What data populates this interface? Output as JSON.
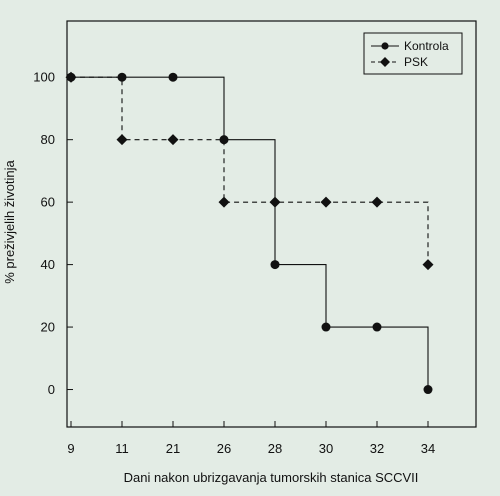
{
  "chart_data": {
    "type": "line",
    "x_ticks": [
      "9",
      "11",
      "21",
      "26",
      "28",
      "30",
      "32",
      "34"
    ],
    "y_ticks": [
      0,
      20,
      40,
      60,
      80,
      100
    ],
    "ylim": [
      -12,
      118
    ],
    "xlabel": "Dani nakon ubrizgavanja tumorskih stanica SCCVII",
    "ylabel": "% preživjelih životinja",
    "legend_position": "top-right",
    "step": true,
    "series": [
      {
        "name": "Kontrola",
        "marker": "circle",
        "line_style": "solid",
        "color": "#111111",
        "points": [
          {
            "x": "9",
            "y": 100
          },
          {
            "x": "11",
            "y": 100
          },
          {
            "x": "21",
            "y": 100
          },
          {
            "x": "26",
            "y": 80
          },
          {
            "x": "28",
            "y": 40
          },
          {
            "x": "30",
            "y": 20
          },
          {
            "x": "32",
            "y": 20
          },
          {
            "x": "34",
            "y": 0
          }
        ]
      },
      {
        "name": "PSK",
        "marker": "diamond",
        "line_style": "dashed",
        "color": "#111111",
        "points": [
          {
            "x": "9",
            "y": 100
          },
          {
            "x": "11",
            "y": 80
          },
          {
            "x": "21",
            "y": 80
          },
          {
            "x": "26",
            "y": 60
          },
          {
            "x": "28",
            "y": 60
          },
          {
            "x": "30",
            "y": 60
          },
          {
            "x": "32",
            "y": 60
          },
          {
            "x": "34",
            "y": 40
          }
        ]
      }
    ]
  }
}
